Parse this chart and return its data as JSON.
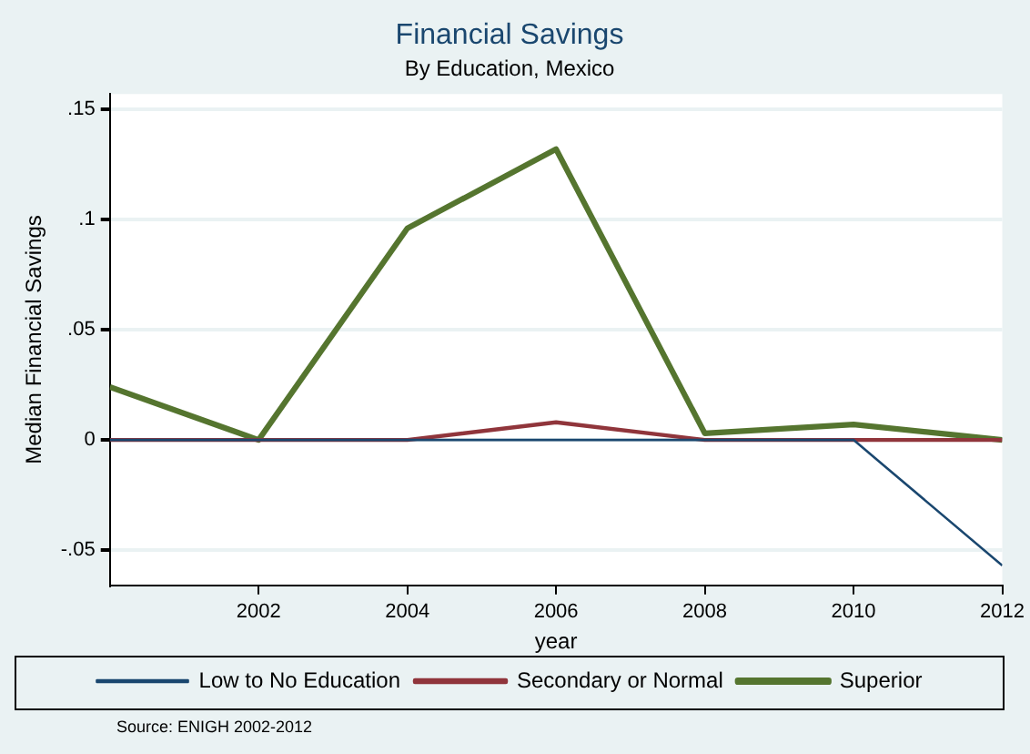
{
  "chart_data": {
    "type": "line",
    "title": "Financial Savings",
    "subtitle": "By Education, Mexico",
    "xlabel": "year",
    "ylabel": "Median Financial Savings",
    "x": [
      2000,
      2002,
      2004,
      2006,
      2008,
      2010,
      2012
    ],
    "xlim": [
      2000,
      2012
    ],
    "xticks": [
      2002,
      2004,
      2006,
      2008,
      2010,
      2012
    ],
    "ylim": [
      -0.066,
      0.157
    ],
    "yticks": [
      {
        "value": -0.05,
        "label": "-.05"
      },
      {
        "value": 0,
        "label": "0"
      },
      {
        "value": 0.05,
        "label": ".05"
      },
      {
        "value": 0.1,
        "label": ".1"
      },
      {
        "value": 0.15,
        "label": ".15"
      }
    ],
    "series": [
      {
        "name": "Low to No Education",
        "color": "#1a476f",
        "values": [
          0,
          0,
          0,
          0,
          0,
          0,
          -0.057
        ]
      },
      {
        "name": "Secondary or Normal",
        "color": "#90353b",
        "values": [
          0,
          0,
          0,
          0.008,
          0,
          0,
          0
        ]
      },
      {
        "name": "Superior",
        "color": "#55752f",
        "values": [
          0.024,
          0,
          0.096,
          0.132,
          0.003,
          0.007,
          0
        ]
      }
    ],
    "grid": "y",
    "legend": "bottom",
    "marker": "none",
    "line_style": "solid",
    "annotations": [
      "Source: ENIGH 2002-2012"
    ]
  }
}
